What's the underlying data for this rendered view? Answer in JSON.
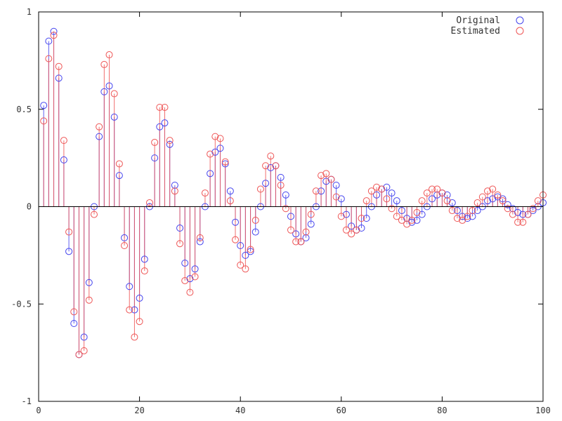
{
  "chart_data": {
    "type": "stem",
    "title": "",
    "xlabel": "",
    "ylabel": "",
    "xlim": [
      0,
      100
    ],
    "ylim": [
      -1,
      1
    ],
    "xticks": [
      0,
      20,
      40,
      60,
      80,
      100
    ],
    "yticks": [
      -1,
      -0.5,
      0,
      0.5,
      1
    ],
    "xtick_labels": [
      "0",
      "20",
      "40",
      "60",
      "80",
      "100"
    ],
    "ytick_labels": [
      "-1",
      "-0.5",
      "0",
      "0.5",
      "1"
    ],
    "legend_position": "top-right",
    "grid": false,
    "series": [
      {
        "name": "Original",
        "color": "#4444ee",
        "marker": "circle-open",
        "x": [
          1,
          2,
          3,
          4,
          5,
          6,
          7,
          8,
          9,
          10,
          11,
          12,
          13,
          14,
          15,
          16,
          17,
          18,
          19,
          20,
          21,
          22,
          23,
          24,
          25,
          26,
          27,
          28,
          29,
          30,
          31,
          32,
          33,
          34,
          35,
          36,
          37,
          38,
          39,
          40,
          41,
          42,
          43,
          44,
          45,
          46,
          47,
          48,
          49,
          50,
          51,
          52,
          53,
          54,
          55,
          56,
          57,
          58,
          59,
          60,
          61,
          62,
          63,
          64,
          65,
          66,
          67,
          68,
          69,
          70,
          71,
          72,
          73,
          74,
          75,
          76,
          77,
          78,
          79,
          80,
          81,
          82,
          83,
          84,
          85,
          86,
          87,
          88,
          89,
          90,
          91,
          92,
          93,
          94,
          95,
          96,
          97,
          98,
          99,
          100
        ],
        "values": [
          0.52,
          0.85,
          0.9,
          0.66,
          0.24,
          -0.23,
          -0.6,
          -0.76,
          -0.67,
          -0.39,
          0.0,
          0.36,
          0.59,
          0.62,
          0.46,
          0.16,
          -0.16,
          -0.41,
          -0.53,
          -0.47,
          -0.27,
          0.0,
          0.25,
          0.41,
          0.43,
          0.32,
          0.11,
          -0.11,
          -0.29,
          -0.37,
          -0.32,
          -0.18,
          0.0,
          0.17,
          0.28,
          0.3,
          0.22,
          0.08,
          -0.08,
          -0.2,
          -0.25,
          -0.23,
          -0.13,
          0.0,
          0.12,
          0.2,
          0.21,
          0.15,
          0.06,
          -0.05,
          -0.14,
          -0.18,
          -0.16,
          -0.09,
          0.0,
          0.08,
          0.13,
          0.14,
          0.11,
          0.04,
          -0.04,
          -0.1,
          -0.12,
          -0.11,
          -0.06,
          0.0,
          0.06,
          0.09,
          0.1,
          0.07,
          0.03,
          -0.02,
          -0.06,
          -0.08,
          -0.07,
          -0.04,
          0.0,
          0.04,
          0.06,
          0.07,
          0.06,
          0.02,
          -0.02,
          -0.05,
          -0.06,
          -0.05,
          -0.02,
          0.0,
          0.03,
          0.04,
          0.05,
          0.04,
          0.01,
          -0.01,
          -0.03,
          -0.04,
          -0.04,
          -0.02,
          0.0,
          0.02
        ]
      },
      {
        "name": "Estimated",
        "color": "#ee5555",
        "marker": "circle-open",
        "x": [
          1,
          2,
          3,
          4,
          5,
          6,
          7,
          8,
          9,
          10,
          11,
          12,
          13,
          14,
          15,
          16,
          17,
          18,
          19,
          20,
          21,
          22,
          23,
          24,
          25,
          26,
          27,
          28,
          29,
          30,
          31,
          32,
          33,
          34,
          35,
          36,
          37,
          38,
          39,
          40,
          41,
          42,
          43,
          44,
          45,
          46,
          47,
          48,
          49,
          50,
          51,
          52,
          53,
          54,
          55,
          56,
          57,
          58,
          59,
          60,
          61,
          62,
          63,
          64,
          65,
          66,
          67,
          68,
          69,
          70,
          71,
          72,
          73,
          74,
          75,
          76,
          77,
          78,
          79,
          80,
          81,
          82,
          83,
          84,
          85,
          86,
          87,
          88,
          89,
          90,
          91,
          92,
          93,
          94,
          95,
          96,
          97,
          98,
          99,
          100
        ],
        "values": [
          0.44,
          0.76,
          0.88,
          0.72,
          0.34,
          -0.13,
          -0.54,
          -0.76,
          -0.74,
          -0.48,
          -0.04,
          0.41,
          0.73,
          0.78,
          0.58,
          0.22,
          -0.2,
          -0.53,
          -0.67,
          -0.59,
          -0.33,
          0.02,
          0.33,
          0.51,
          0.51,
          0.34,
          0.08,
          -0.19,
          -0.38,
          -0.44,
          -0.36,
          -0.16,
          0.07,
          0.27,
          0.36,
          0.35,
          0.23,
          0.03,
          -0.17,
          -0.3,
          -0.32,
          -0.22,
          -0.07,
          0.09,
          0.21,
          0.26,
          0.21,
          0.11,
          -0.01,
          -0.12,
          -0.18,
          -0.18,
          -0.13,
          -0.04,
          0.08,
          0.16,
          0.17,
          0.14,
          0.05,
          -0.05,
          -0.12,
          -0.14,
          -0.12,
          -0.06,
          0.03,
          0.08,
          0.1,
          0.09,
          0.04,
          -0.01,
          -0.05,
          -0.07,
          -0.09,
          -0.07,
          -0.03,
          0.03,
          0.07,
          0.09,
          0.09,
          0.07,
          0.03,
          -0.02,
          -0.06,
          -0.07,
          -0.05,
          -0.02,
          0.02,
          0.05,
          0.08,
          0.09,
          0.06,
          0.03,
          -0.01,
          -0.04,
          -0.08,
          -0.08,
          -0.04,
          -0.01,
          0.03,
          0.06
        ]
      }
    ]
  }
}
